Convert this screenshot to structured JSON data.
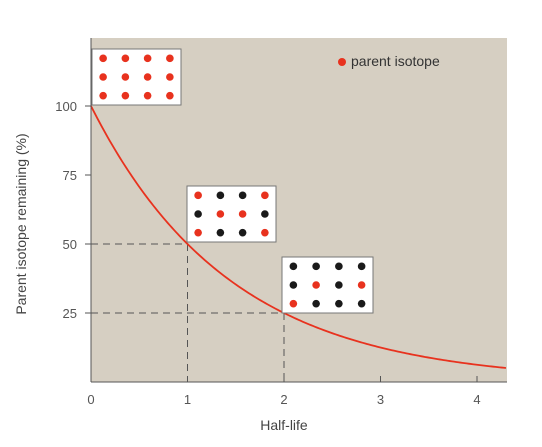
{
  "chart_data": {
    "type": "line",
    "xlabel": "Half-life",
    "ylabel": "Parent isotope remaining (%)",
    "xlim": [
      0,
      4.3
    ],
    "ylim": [
      0,
      125
    ],
    "x_ticks": [
      "0",
      "1",
      "2",
      "3",
      "4"
    ],
    "y_ticks": [
      "25",
      "50",
      "75",
      "100"
    ],
    "series": [
      {
        "name": "parent isotope",
        "x": [
          0,
          1,
          2,
          3,
          4
        ],
        "y": [
          100,
          50,
          25,
          12.5,
          6.25
        ]
      }
    ],
    "reference_points": [
      {
        "x": 1,
        "y": 50
      },
      {
        "x": 2,
        "y": 25
      }
    ],
    "legend": {
      "position": "top-right",
      "label": "parent isotope"
    },
    "insets": [
      {
        "half_lives": 0,
        "pattern": [
          "pppp",
          "pppp",
          "pppp"
        ]
      },
      {
        "half_lives": 1,
        "pattern": [
          "pddp",
          "dppd",
          "pddp"
        ]
      },
      {
        "half_lives": 2,
        "pattern": [
          "dddd",
          "dpdp",
          "pddd"
        ]
      }
    ],
    "colors": {
      "plot_bg": "#d6cfc2",
      "curve": "#e8321e",
      "parent": "#e8321e",
      "daughter": "#1a1a1a",
      "axis": "#555555",
      "guide": "#555555"
    }
  }
}
